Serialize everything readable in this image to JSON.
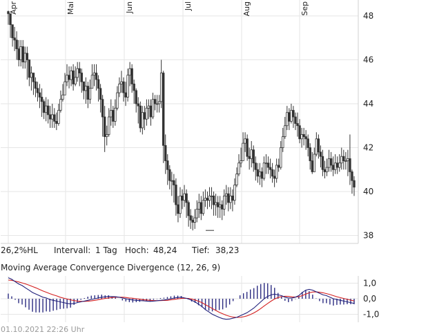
{
  "stats": {
    "hl_label": "26,2%HL",
    "interval_label": "Intervall:",
    "interval_value": "1 Tag",
    "high_label": "Hoch:",
    "high_value": "48,24",
    "low_label": "Tief:",
    "low_value": "38,23"
  },
  "indicator_title": "Moving Average Convergence Divergence (12, 26, 9)",
  "timestamp": "01.10.2021 22:26 Uhr",
  "colors": {
    "grid": "#e6e6e6",
    "candle": "#333333",
    "macd_line": "#1f1f7a",
    "signal_line": "#d42020",
    "histogram": "#2a2a80",
    "text": "#222222",
    "muted": "#9a9a9a"
  },
  "chart_data": [
    {
      "type": "candlestick",
      "title": "",
      "x_ticks": [
        "Apr",
        "Mai",
        "Jun",
        "Jul",
        "Aug",
        "Sep"
      ],
      "y_ticks": [
        "48",
        "46",
        "44",
        "42",
        "40",
        "38"
      ],
      "ylim": [
        37.7,
        48.6
      ],
      "grid": true,
      "close": [
        48.1,
        47.6,
        47.0,
        46.9,
        46.5,
        46.0,
        46.6,
        45.9,
        46.3,
        46.0,
        45.2,
        45.4,
        45.0,
        44.7,
        44.5,
        44.3,
        44.1,
        43.6,
        43.9,
        43.5,
        43.3,
        43.5,
        43.2,
        43.1,
        43.7,
        44.2,
        44.4,
        45.0,
        45.3,
        45.1,
        45.5,
        44.9,
        45.2,
        45.6,
        45.4,
        45.0,
        44.6,
        44.8,
        44.2,
        44.7,
        45.3,
        45.4,
        45.1,
        44.7,
        44.2,
        43.4,
        42.5,
        42.6,
        43.4,
        43.7,
        43.2,
        43.8,
        44.5,
        44.9,
        45.0,
        44.5,
        44.3,
        45.3,
        45.6,
        44.9,
        44.6,
        44.0,
        43.9,
        42.9,
        43.6,
        43.3,
        43.8,
        43.9,
        43.4,
        44.2,
        44.0,
        44.0,
        44.1,
        45.4,
        42.1,
        41.4,
        41.0,
        40.5,
        40.5,
        40.3,
        39.4,
        39.0,
        39.8,
        39.6,
        39.9,
        39.5,
        38.9,
        38.7,
        38.6,
        38.8,
        39.2,
        39.5,
        39.0,
        39.6,
        39.7,
        39.6,
        39.8,
        39.8,
        39.4,
        39.5,
        39.3,
        39.4,
        39.2,
        39.8,
        39.9,
        39.5,
        39.8,
        39.6,
        40.3,
        40.8,
        41.3,
        41.4,
        42.2,
        42.4,
        41.6,
        41.5,
        41.9,
        41.3,
        41.0,
        40.7,
        40.9,
        40.6,
        41.3,
        41.3,
        41.1,
        41.0,
        40.7,
        40.6,
        41.2,
        41.1,
        42.0,
        42.5,
        43.0,
        43.6,
        43.2,
        43.7,
        43.4,
        43.1,
        43.0,
        42.4,
        42.6,
        42.5,
        42.4,
        42.0,
        41.4,
        40.9,
        41.7,
        42.4,
        41.8,
        41.6,
        41.0,
        40.9,
        41.1,
        41.5,
        41.2,
        41.0,
        41.3,
        41.1,
        41.3,
        41.6,
        41.4,
        41.4,
        41.5,
        40.9,
        40.5,
        40.2
      ],
      "high": [
        48.24,
        48.0,
        47.6,
        47.5,
        47.3,
        46.9,
        46.9,
        46.9,
        46.6,
        46.6,
        46.0,
        45.7,
        45.4,
        45.2,
        45.0,
        44.9,
        44.7,
        44.2,
        44.3,
        44.2,
        43.9,
        44.0,
        43.8,
        43.6,
        44.0,
        44.6,
        44.9,
        45.4,
        45.8,
        45.7,
        45.7,
        45.8,
        45.7,
        45.9,
        45.9,
        45.6,
        45.0,
        45.2,
        45.0,
        45.1,
        45.8,
        45.8,
        45.8,
        45.3,
        44.9,
        44.4,
        43.9,
        43.0,
        43.8,
        44.2,
        43.9,
        44.2,
        44.8,
        45.2,
        45.5,
        45.2,
        45.0,
        45.6,
        45.9,
        45.8,
        45.1,
        44.7,
        44.3,
        44.1,
        43.9,
        43.9,
        44.2,
        44.2,
        44.2,
        44.5,
        44.4,
        44.4,
        44.4,
        46.0,
        45.5,
        42.6,
        41.7,
        41.2,
        40.9,
        40.8,
        40.6,
        39.8,
        40.2,
        40.1,
        40.3,
        40.1,
        39.6,
        39.2,
        38.9,
        39.2,
        39.6,
        39.9,
        39.8,
        40.0,
        40.1,
        40.0,
        40.2,
        40.2,
        40.0,
        39.9,
        39.8,
        39.8,
        39.6,
        40.1,
        40.3,
        40.2,
        40.2,
        40.1,
        40.6,
        41.1,
        41.7,
        42.0,
        42.7,
        42.7,
        42.6,
        42.0,
        42.3,
        42.1,
        41.6,
        41.3,
        41.3,
        41.1,
        41.6,
        41.7,
        41.6,
        41.5,
        41.3,
        41.0,
        41.5,
        41.5,
        42.3,
        42.9,
        43.4,
        43.9,
        43.8,
        44.0,
        43.9,
        43.6,
        43.6,
        43.3,
        42.9,
        42.9,
        42.8,
        42.6,
        42.2,
        41.8,
        42.0,
        42.7,
        42.6,
        42.1,
        41.9,
        41.4,
        41.5,
        41.9,
        41.8,
        41.6,
        41.7,
        41.6,
        41.7,
        42.0,
        41.9,
        41.8,
        41.9,
        42.6,
        41.0,
        40.7
      ],
      "low": [
        47.6,
        47.0,
        46.6,
        46.4,
        46.0,
        45.7,
        45.7,
        45.6,
        45.6,
        45.1,
        44.8,
        44.6,
        44.4,
        44.3,
        44.1,
        43.8,
        43.4,
        43.3,
        43.2,
        43.1,
        42.9,
        42.9,
        42.9,
        42.8,
        43.0,
        43.6,
        44.1,
        44.5,
        44.8,
        44.7,
        44.8,
        44.6,
        44.8,
        45.0,
        44.8,
        44.5,
        44.2,
        44.0,
        43.8,
        44.0,
        44.7,
        44.8,
        44.6,
        44.1,
        43.6,
        42.5,
        41.8,
        42.1,
        42.5,
        43.0,
        42.9,
        43.0,
        43.7,
        44.3,
        44.5,
        44.1,
        43.9,
        44.1,
        44.8,
        44.5,
        44.0,
        43.6,
        43.1,
        42.7,
        42.6,
        42.8,
        43.0,
        43.3,
        43.0,
        43.3,
        43.7,
        43.6,
        43.6,
        43.8,
        41.3,
        40.8,
        40.3,
        40.1,
        39.8,
        39.5,
        38.9,
        38.6,
        38.8,
        39.2,
        39.3,
        38.8,
        38.4,
        38.3,
        38.23,
        38.3,
        38.6,
        38.8,
        38.7,
        38.9,
        39.3,
        39.2,
        39.3,
        39.2,
        38.9,
        38.9,
        38.8,
        38.8,
        38.7,
        38.9,
        39.4,
        39.1,
        39.2,
        39.1,
        39.4,
        40.2,
        40.7,
        41.1,
        41.5,
        41.8,
        41.4,
        41.0,
        41.1,
        40.9,
        40.5,
        40.4,
        40.3,
        40.2,
        40.5,
        40.8,
        40.8,
        40.6,
        40.4,
        40.2,
        40.4,
        40.9,
        41.0,
        41.8,
        42.4,
        42.8,
        42.8,
        43.1,
        42.9,
        42.8,
        42.5,
        42.2,
        42.0,
        42.1,
        41.9,
        41.6,
        41.0,
        40.8,
        40.9,
        41.6,
        41.5,
        41.1,
        40.7,
        40.6,
        40.7,
        40.9,
        40.9,
        40.7,
        40.8,
        40.8,
        40.9,
        41.0,
        41.0,
        41.0,
        40.7,
        40.3,
        39.9,
        39.8
      ]
    },
    {
      "type": "line",
      "title": "Moving Average Convergence Divergence (12, 26, 9)",
      "x_ticks": [
        "Apr",
        "Mai",
        "Jun",
        "Jul",
        "Aug",
        "Sep"
      ],
      "y_ticks": [
        "1,0",
        "0,0",
        "-1,0"
      ],
      "ylim": [
        -1.45,
        1.45
      ],
      "series": [
        {
          "name": "MACD",
          "values": [
            1.35,
            1.25,
            1.1,
            0.95,
            0.85,
            0.7,
            0.55,
            0.4,
            0.3,
            0.2,
            0.1,
            0.05,
            -0.05,
            -0.1,
            -0.15,
            -0.2,
            -0.25,
            -0.3,
            -0.33,
            -0.3,
            -0.25,
            -0.2,
            -0.15,
            -0.1,
            -0.05,
            0.0,
            0.05,
            0.1,
            0.12,
            0.15,
            0.14,
            0.13,
            0.1,
            0.05,
            0.0,
            -0.05,
            -0.08,
            -0.1,
            -0.12,
            -0.13,
            -0.15,
            -0.17,
            -0.15,
            -0.13,
            -0.1,
            -0.08,
            -0.05,
            0.0,
            0.05,
            0.08,
            0.1,
            0.05,
            0.0,
            -0.1,
            -0.2,
            -0.35,
            -0.5,
            -0.7,
            -0.85,
            -1.0,
            -1.1,
            -1.2,
            -1.28,
            -1.32,
            -1.3,
            -1.25,
            -1.2,
            -1.1,
            -1.0,
            -0.9,
            -0.75,
            -0.6,
            -0.4,
            -0.2,
            0.0,
            0.15,
            0.25,
            0.3,
            0.25,
            0.2,
            0.1,
            0.05,
            0.05,
            0.1,
            0.2,
            0.4,
            0.55,
            0.6,
            0.55,
            0.45,
            0.35,
            0.25,
            0.2,
            0.1,
            0.0,
            -0.05,
            -0.1,
            -0.15,
            -0.2,
            -0.25,
            -0.3
          ]
        },
        {
          "name": "Signal",
          "values": [
            1.2,
            1.18,
            1.13,
            1.08,
            1.02,
            0.95,
            0.87,
            0.78,
            0.7,
            0.6,
            0.5,
            0.42,
            0.33,
            0.25,
            0.18,
            0.1,
            0.04,
            -0.02,
            -0.07,
            -0.12,
            -0.15,
            -0.17,
            -0.17,
            -0.16,
            -0.14,
            -0.1,
            -0.06,
            -0.02,
            0.02,
            0.05,
            0.08,
            0.1,
            0.1,
            0.1,
            0.08,
            0.05,
            0.03,
            0.0,
            -0.03,
            -0.06,
            -0.08,
            -0.1,
            -0.12,
            -0.12,
            -0.12,
            -0.11,
            -0.1,
            -0.07,
            -0.04,
            -0.01,
            0.02,
            0.03,
            0.02,
            -0.02,
            -0.08,
            -0.16,
            -0.25,
            -0.38,
            -0.5,
            -0.63,
            -0.75,
            -0.87,
            -0.97,
            -1.06,
            -1.13,
            -1.18,
            -1.2,
            -1.2,
            -1.16,
            -1.1,
            -1.02,
            -0.91,
            -0.78,
            -0.63,
            -0.46,
            -0.3,
            -0.15,
            -0.02,
            0.08,
            0.14,
            0.16,
            0.15,
            0.12,
            0.11,
            0.13,
            0.2,
            0.3,
            0.38,
            0.43,
            0.44,
            0.42,
            0.38,
            0.33,
            0.27,
            0.2,
            0.13,
            0.07,
            0.02,
            -0.04,
            -0.09,
            -0.14
          ]
        }
      ]
    }
  ]
}
